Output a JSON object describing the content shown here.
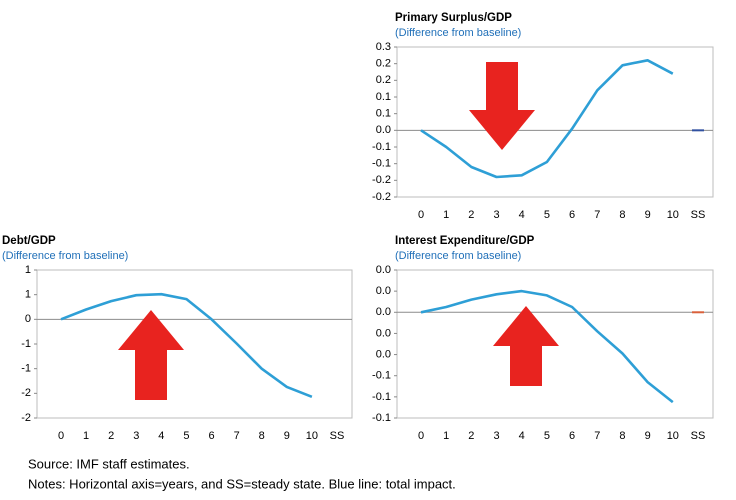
{
  "chart_data": [
    {
      "type": "line",
      "title": "Primary Surplus/GDP",
      "subtitle": "(Difference from baseline)",
      "categories": [
        "0",
        "1",
        "2",
        "3",
        "4",
        "5",
        "6",
        "7",
        "8",
        "9",
        "10",
        "SS"
      ],
      "series": [
        {
          "color": "#2e9fd6",
          "values": [
            0,
            -0.05,
            -0.11,
            -0.14,
            -0.135,
            -0.095,
            0.005,
            0.12,
            0.195,
            0.21,
            0.17,
            null
          ]
        },
        {
          "color": "#3050a0",
          "values": [
            null,
            null,
            null,
            null,
            null,
            null,
            null,
            null,
            null,
            null,
            null,
            0
          ]
        }
      ],
      "ylim": [
        -0.2,
        0.25
      ],
      "yticks": [
        {
          "value": 0.25,
          "label": "0.3"
        },
        0.2,
        {
          "value": 0.15,
          "label": "0.2"
        },
        0.1,
        {
          "value": 0.05,
          "label": "0.1"
        },
        {
          "value": 0,
          "label": "0.0"
        },
        {
          "value": -0.05,
          "label": "-0.1"
        },
        -0.1,
        {
          "value": -0.15,
          "label": "-0.2"
        },
        -0.2
      ]
    },
    {
      "type": "line",
      "title": "Debt/GDP",
      "subtitle": "(Difference from baseline)",
      "categories": [
        "0",
        "1",
        "2",
        "3",
        "4",
        "5",
        "6",
        "7",
        "8",
        "9",
        "10",
        "SS"
      ],
      "series": [
        {
          "color": "#2e9fd6",
          "values": [
            0,
            0.2,
            0.37,
            0.49,
            0.51,
            0.41,
            0,
            -0.49,
            -1.0,
            -1.37,
            -1.57,
            null
          ]
        }
      ],
      "ylim": [
        -2,
        1
      ],
      "yticks": [
        1,
        {
          "value": 0.5,
          "label": "1"
        },
        0,
        {
          "value": -0.5,
          "label": "-1"
        },
        -1,
        {
          "value": -1.5,
          "label": "-2"
        },
        -2
      ]
    },
    {
      "type": "line",
      "title": "Interest Expenditure/GDP",
      "subtitle": "(Difference from baseline)",
      "categories": [
        "0",
        "1",
        "2",
        "3",
        "4",
        "5",
        "6",
        "7",
        "8",
        "9",
        "10",
        "SS"
      ],
      "series": [
        {
          "color": "#2e9fd6",
          "values": [
            0,
            0.005,
            0.012,
            0.017,
            0.02,
            0.016,
            0.005,
            -0.018,
            -0.039,
            -0.066,
            -0.085,
            null
          ]
        },
        {
          "color": "#d9603b",
          "values": [
            null,
            null,
            null,
            null,
            null,
            null,
            null,
            null,
            null,
            null,
            null,
            0
          ]
        }
      ],
      "ylim": [
        -0.1,
        0.04
      ],
      "yticks": [
        {
          "value": 0.04,
          "label": "0.0"
        },
        {
          "value": 0.02,
          "label": "0.0"
        },
        {
          "value": 0,
          "label": "0.0"
        },
        {
          "value": -0.02,
          "label": "0.0"
        },
        {
          "value": -0.04,
          "label": "0.0"
        },
        {
          "value": -0.06,
          "label": "-0.1"
        },
        {
          "value": -0.08,
          "label": "-0.1"
        },
        -0.1
      ]
    }
  ],
  "source": "Source: IMF staff estimates.",
  "notes": "Notes: Horizontal axis=years, and SS=steady state. Blue line: total impact."
}
